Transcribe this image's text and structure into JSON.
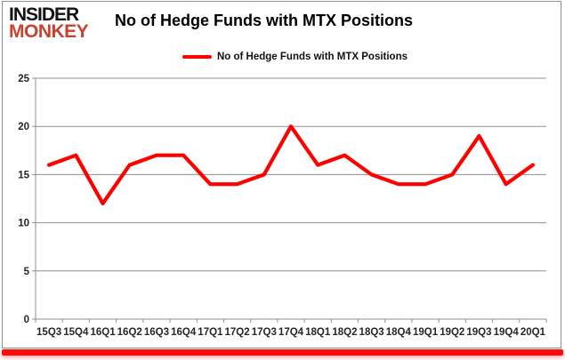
{
  "logo": {
    "line1": "INSIDER",
    "line2": "MONKEY"
  },
  "header": {
    "title": "No of Hedge Funds with MTX Positions"
  },
  "legend": {
    "label": "No of Hedge Funds with MTX Positions"
  },
  "colors": {
    "series_red": "#FF0000",
    "logo_red": "#C7432F",
    "grid_gray": "#8F8F8F",
    "axis_text": "#262626",
    "accent_bar_red": "#FB0D0C"
  },
  "chart_data": {
    "type": "line",
    "title": "No of Hedge Funds with MTX Positions",
    "categories": [
      "15Q3",
      "15Q4",
      "16Q1",
      "16Q2",
      "16Q3",
      "16Q4",
      "17Q1",
      "17Q2",
      "17Q3",
      "17Q4",
      "18Q1",
      "18Q2",
      "18Q3",
      "18Q4",
      "19Q1",
      "19Q2",
      "19Q3",
      "19Q4",
      "20Q1"
    ],
    "series": [
      {
        "name": "No of Hedge Funds with MTX Positions",
        "color": "#FF0000",
        "values": [
          16,
          17,
          12,
          16,
          17,
          17,
          14,
          14,
          15,
          20,
          16,
          17,
          15,
          14,
          14,
          15,
          19,
          14,
          16
        ]
      }
    ],
    "xlabel": "",
    "ylabel": "",
    "ylim": [
      0,
      25
    ],
    "ytick_interval": 5,
    "grid": "horizontal",
    "legend_position": "top-center"
  }
}
